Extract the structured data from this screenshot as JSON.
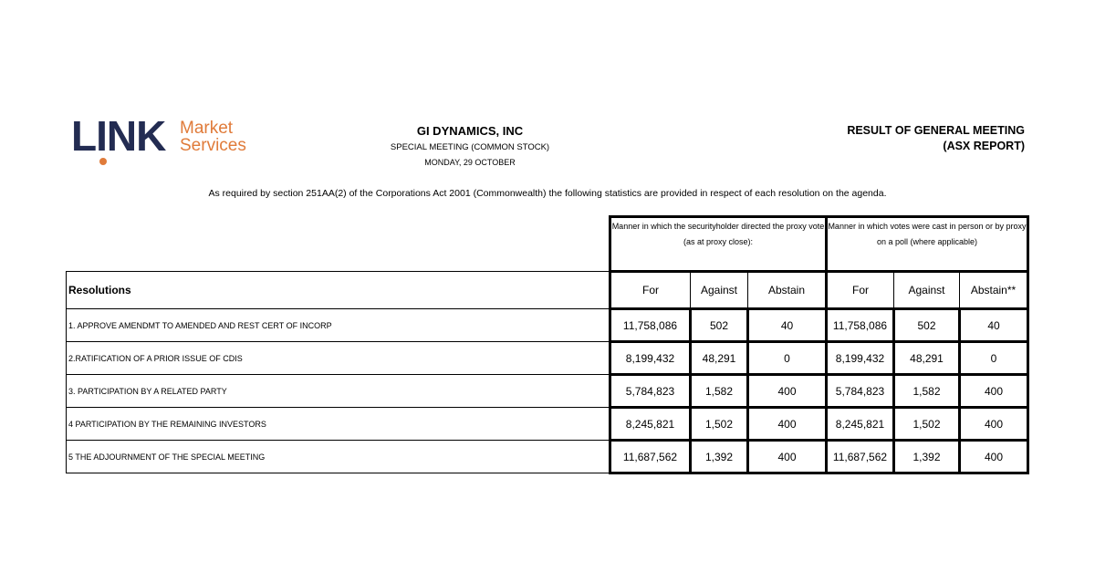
{
  "logo": {
    "brand": "LINK",
    "line1": "Market",
    "line2": "Services",
    "navy": "#232c52",
    "orange": "#e07b3a"
  },
  "header": {
    "company": "GI DYNAMICS, INC",
    "meeting": "SPECIAL MEETING (COMMON STOCK)",
    "date": "MONDAY, 29 OCTOBER",
    "report_title": "RESULT OF GENERAL MEETING",
    "report_subtitle": "(ASX REPORT)"
  },
  "intro": "As required by section 251AA(2) of the Corporations Act 2001 (Commonwealth) the following statistics are provided in respect of each resolution on the agenda.",
  "table": {
    "resolutions_header": "Resolutions",
    "group_proxy": "Manner in which the securityholder directed the proxy vote (as at proxy close):",
    "group_poll": "Manner in which votes were cast in person or by proxy on a poll (where applicable)",
    "columns": [
      "For",
      "Against",
      "Abstain",
      "For",
      "Against",
      "Abstain**"
    ],
    "rows": [
      {
        "resolution": "1. APPROVE AMENDMT TO AMENDED AND REST CERT OF INCORP",
        "values": [
          "11,758,086",
          "502",
          "40",
          "11,758,086",
          "502",
          "40"
        ]
      },
      {
        "resolution": "2.RATIFICATION OF A PRIOR ISSUE OF CDIS",
        "values": [
          "8,199,432",
          "48,291",
          "0",
          "8,199,432",
          "48,291",
          "0"
        ]
      },
      {
        "resolution": "3. PARTICIPATION BY A RELATED PARTY",
        "values": [
          "5,784,823",
          "1,582",
          "400",
          "5,784,823",
          "1,582",
          "400"
        ]
      },
      {
        "resolution": "4 PARTICIPATION BY THE REMAINING INVESTORS",
        "values": [
          "8,245,821",
          "1,502",
          "400",
          "8,245,821",
          "1,502",
          "400"
        ]
      },
      {
        "resolution": "5 THE ADJOURNMENT OF THE SPECIAL MEETING",
        "values": [
          "11,687,562",
          "1,392",
          "400",
          "11,687,562",
          "1,392",
          "400"
        ]
      }
    ]
  }
}
